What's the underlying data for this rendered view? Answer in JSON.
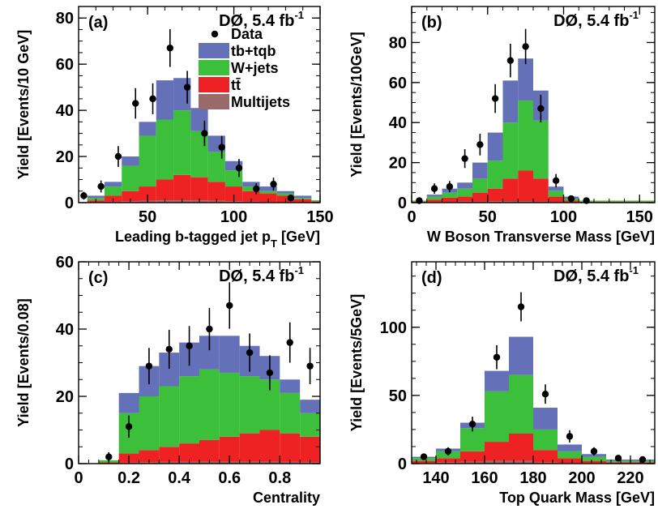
{
  "legend": {
    "items": [
      {
        "label": "Data",
        "color": "#000000",
        "kind": "marker"
      },
      {
        "label": "tb+tqb",
        "color": "#6470b8",
        "kind": "box"
      },
      {
        "label": "W+jets",
        "color": "#3cc03c",
        "kind": "box"
      },
      {
        "label": "tt̄",
        "color": "#ee2222",
        "kind": "box"
      },
      {
        "label": "Multijets",
        "color": "#9a6a6a",
        "kind": "box"
      }
    ]
  },
  "colors": {
    "signal": "#6470b8",
    "wjets": "#3cc03c",
    "ttbar": "#ee2222",
    "multijets": "#9a6a6a",
    "data": "#000000"
  },
  "chart_data": [
    {
      "type": "bar",
      "tag": "(a)",
      "experiment": "DØ,  5.4 fb",
      "lumi_exp": "-1",
      "xlabel": "Leading b-tagged jet p",
      "xlabel_sub": "T",
      "xlabel_tail": " [GeV]",
      "ylabel": "Yield [Events/10 GeV]",
      "xlim": [
        10,
        150
      ],
      "ylim": [
        0,
        85
      ],
      "xticks": [
        50,
        100,
        150
      ],
      "yticks": [
        0,
        20,
        40,
        60,
        80
      ],
      "bin_edges": [
        15,
        25,
        35,
        45,
        55,
        65,
        75,
        85,
        95,
        105,
        115,
        125,
        135,
        145,
        155
      ],
      "stack": {
        "multijets": [
          0.2,
          0.4,
          0.6,
          0.8,
          1.0,
          1.0,
          1.0,
          0.8,
          0.6,
          0.4,
          0.3,
          0.2,
          0.1,
          0.1
        ],
        "ttbar": [
          0.8,
          2.6,
          4.4,
          6.2,
          9.0,
          11.0,
          10.0,
          8.2,
          6.4,
          4.6,
          3.7,
          2.8,
          1.4,
          0.4
        ],
        "wjets": [
          1.0,
          4.0,
          11.0,
          22.0,
          26.0,
          28.0,
          20.0,
          13.0,
          7.0,
          2.0,
          1.0,
          1.0,
          0.5,
          0.5
        ],
        "signal": [
          1.0,
          2.0,
          4.0,
          6.0,
          17.0,
          14.0,
          10.0,
          7.0,
          4.0,
          2.0,
          2.0,
          1.0,
          1.0,
          0.0
        ]
      },
      "data": {
        "x": [
          13,
          23,
          33,
          43,
          53,
          63,
          73,
          83,
          93,
          103,
          113,
          123,
          133
        ],
        "y": [
          3,
          7,
          20,
          43,
          45,
          67,
          50,
          30,
          24,
          15,
          6,
          8,
          2
        ],
        "err": [
          1.7,
          2.6,
          4.5,
          6.6,
          6.7,
          8.2,
          7.1,
          5.5,
          4.9,
          3.9,
          2.4,
          2.8,
          1.4
        ]
      }
    },
    {
      "type": "bar",
      "tag": "(b)",
      "experiment": "DØ,  5.4 fb",
      "lumi_exp": "-1",
      "xlabel": "W Boson Transverse Mass [GeV]",
      "ylabel": "Yield [Events/10GeV]",
      "xlim": [
        0,
        160
      ],
      "ylim": [
        0,
        98
      ],
      "xticks": [
        0,
        50,
        100,
        150
      ],
      "yticks": [
        0,
        20,
        40,
        60,
        80
      ],
      "bin_edges": [
        0,
        10,
        20,
        30,
        40,
        50,
        60,
        70,
        80,
        90,
        100,
        110,
        120,
        130,
        140,
        150,
        160
      ],
      "stack": {
        "multijets": [
          0.2,
          0.3,
          0.4,
          0.5,
          0.6,
          0.7,
          0.8,
          0.8,
          0.6,
          0.3,
          0.2,
          0.1,
          0.1,
          0.1,
          0.1,
          0.1
        ],
        "ttbar": [
          0.3,
          1.2,
          2.1,
          2.5,
          4.4,
          6.3,
          11.2,
          15.2,
          11.4,
          2.7,
          0.8,
          0.4,
          0.4,
          0.4,
          0.4,
          0.4
        ],
        "wjets": [
          0.5,
          1.5,
          2.5,
          4.0,
          7.0,
          14.0,
          28.0,
          35.0,
          29.0,
          3.0,
          1.0,
          0.5,
          0.5,
          0.5,
          0.5,
          0.5
        ],
        "signal": [
          0.0,
          1.0,
          2.0,
          3.0,
          8.0,
          14.0,
          21.0,
          21.0,
          15.0,
          2.0,
          1.0,
          0.0,
          0.0,
          0.0,
          0.0,
          0.0
        ]
      },
      "data": {
        "x": [
          5,
          15,
          25,
          35,
          45,
          55,
          65,
          75,
          85,
          95,
          105,
          115
        ],
        "y": [
          1,
          7,
          8,
          22,
          29,
          52,
          71,
          78,
          47,
          11,
          2,
          1
        ],
        "err": [
          1.0,
          2.6,
          2.8,
          4.7,
          5.4,
          7.2,
          8.4,
          8.8,
          6.9,
          3.3,
          1.4,
          1.0
        ]
      }
    },
    {
      "type": "bar",
      "tag": "(c)",
      "experiment": "DØ,  5.4 fb",
      "lumi_exp": "-1",
      "xlabel": "Centrality",
      "ylabel": "Yield [Events/0.08]",
      "xlim": [
        0,
        0.96
      ],
      "ylim": [
        0,
        60
      ],
      "xticks": [
        0,
        0.2,
        0.4,
        0.6,
        0.8
      ],
      "yticks": [
        0,
        20,
        40,
        60
      ],
      "bin_edges": [
        0.08,
        0.16,
        0.24,
        0.32,
        0.4,
        0.48,
        0.56,
        0.64,
        0.72,
        0.8,
        0.88,
        0.96
      ],
      "stack": {
        "multijets": [
          0.1,
          0.3,
          0.4,
          0.5,
          0.5,
          0.6,
          0.6,
          0.6,
          0.6,
          0.5,
          0.4
        ],
        "ttbar": [
          0.3,
          2.7,
          3.6,
          4.5,
          5.5,
          6.4,
          7.4,
          8.4,
          9.4,
          8.5,
          7.6
        ],
        "wjets": [
          0.6,
          12.0,
          16.0,
          18.0,
          20.0,
          21.0,
          19.0,
          17.0,
          15.0,
          12.0,
          7.0
        ],
        "signal": [
          0.0,
          6.0,
          9.0,
          10.0,
          10.0,
          10.0,
          11.0,
          9.0,
          7.0,
          4.0,
          4.0
        ]
      },
      "data": {
        "x": [
          0.12,
          0.2,
          0.28,
          0.36,
          0.44,
          0.52,
          0.6,
          0.68,
          0.76,
          0.84,
          0.92
        ],
        "y": [
          2,
          11,
          29,
          34,
          35,
          40,
          47,
          33,
          27,
          36,
          29
        ],
        "err": [
          1.4,
          3.3,
          5.4,
          5.8,
          5.9,
          6.3,
          6.9,
          5.7,
          5.2,
          6.0,
          5.4
        ]
      }
    },
    {
      "type": "bar",
      "tag": "(d)",
      "experiment": "DØ,  5.4 fb",
      "lumi_exp": "-1",
      "xlabel": "Top Quark Mass [GeV]",
      "ylabel": "Yield [Events/5GeV]",
      "xlim": [
        130,
        230
      ],
      "ylim": [
        0,
        148
      ],
      "xticks": [
        140,
        160,
        180,
        200,
        220
      ],
      "yticks": [
        0,
        50,
        100
      ],
      "bin_edges": [
        130,
        140,
        150,
        160,
        170,
        180,
        190,
        200,
        210,
        220,
        230
      ],
      "stack": {
        "multijets": [
          0.5,
          1.0,
          1.5,
          2.0,
          2.0,
          1.0,
          0.5,
          0.5,
          0.3,
          0.3
        ],
        "ttbar": [
          1.5,
          3.0,
          7.5,
          14.0,
          20.0,
          9.0,
          3.5,
          1.5,
          0.7,
          0.7
        ],
        "wjets": [
          2.0,
          5.0,
          17.0,
          37.0,
          43.0,
          15.0,
          5.0,
          3.0,
          1.0,
          1.0
        ],
        "signal": [
          1.0,
          2.0,
          4.0,
          15.0,
          28.0,
          16.0,
          5.0,
          2.0,
          1.0,
          1.0
        ]
      },
      "data": {
        "x": [
          135,
          145,
          155,
          165,
          175,
          185,
          195,
          205,
          215,
          225
        ],
        "y": [
          5,
          9,
          29,
          78,
          115,
          51,
          20,
          9,
          4,
          3
        ],
        "err": [
          2.2,
          3.0,
          5.4,
          8.8,
          10.7,
          7.1,
          4.5,
          3.0,
          2.0,
          1.7
        ]
      }
    }
  ]
}
